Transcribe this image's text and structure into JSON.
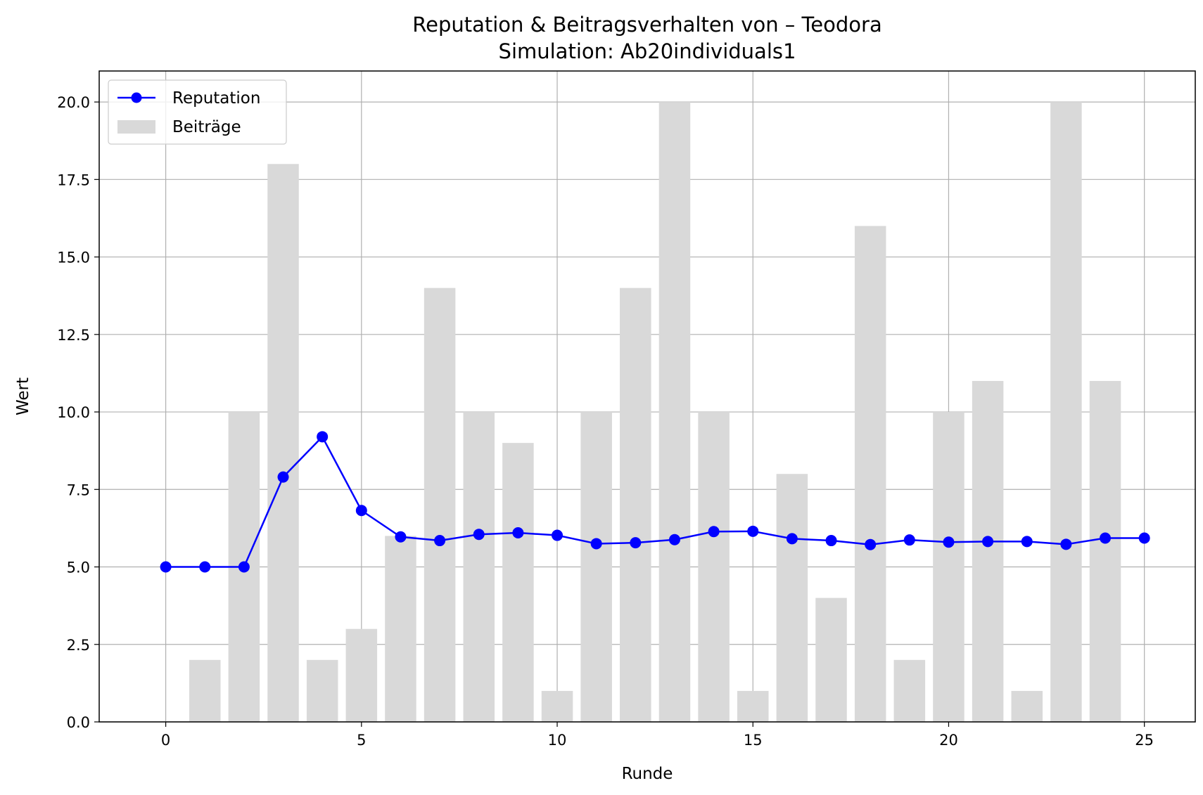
{
  "chart_data": {
    "type": "bar",
    "title": "Reputation & Beitragsverhalten von – Teodora",
    "subtitle": "Simulation: Ab20individuals1",
    "xlabel": "Runde",
    "ylabel": "Wert",
    "xlim": [
      -1.7,
      26.3
    ],
    "ylim": [
      0,
      21
    ],
    "xticks": [
      0,
      5,
      10,
      15,
      20,
      25
    ],
    "yticks": [
      0.0,
      2.5,
      5.0,
      7.5,
      10.0,
      12.5,
      15.0,
      17.5,
      20.0
    ],
    "ytick_labels": [
      "0.0",
      "2.5",
      "5.0",
      "7.5",
      "10.0",
      "12.5",
      "15.0",
      "17.5",
      "20.0"
    ],
    "grid": true,
    "legend_position": "top-left",
    "x": [
      0,
      1,
      2,
      3,
      4,
      5,
      6,
      7,
      8,
      9,
      10,
      11,
      12,
      13,
      14,
      15,
      16,
      17,
      18,
      19,
      20,
      21,
      22,
      23,
      24,
      25
    ],
    "series": [
      {
        "name": "Reputation",
        "kind": "line",
        "color": "#0000ff",
        "marker": "circle",
        "values": [
          5.0,
          5.0,
          5.0,
          7.9,
          9.2,
          6.82,
          5.97,
          5.85,
          6.05,
          6.1,
          6.02,
          5.75,
          5.78,
          5.88,
          6.14,
          6.15,
          5.91,
          5.85,
          5.72,
          5.87,
          5.8,
          5.82,
          5.82,
          5.73,
          5.93,
          5.93
        ]
      },
      {
        "name": "Beiträge",
        "kind": "bar",
        "color": "#d9d9d9",
        "values": [
          0,
          2,
          10,
          18,
          2,
          3,
          6,
          14,
          10,
          9,
          1,
          10,
          14,
          20,
          10,
          1,
          8,
          4,
          16,
          2,
          10,
          11,
          1,
          20,
          11,
          0
        ]
      }
    ]
  }
}
